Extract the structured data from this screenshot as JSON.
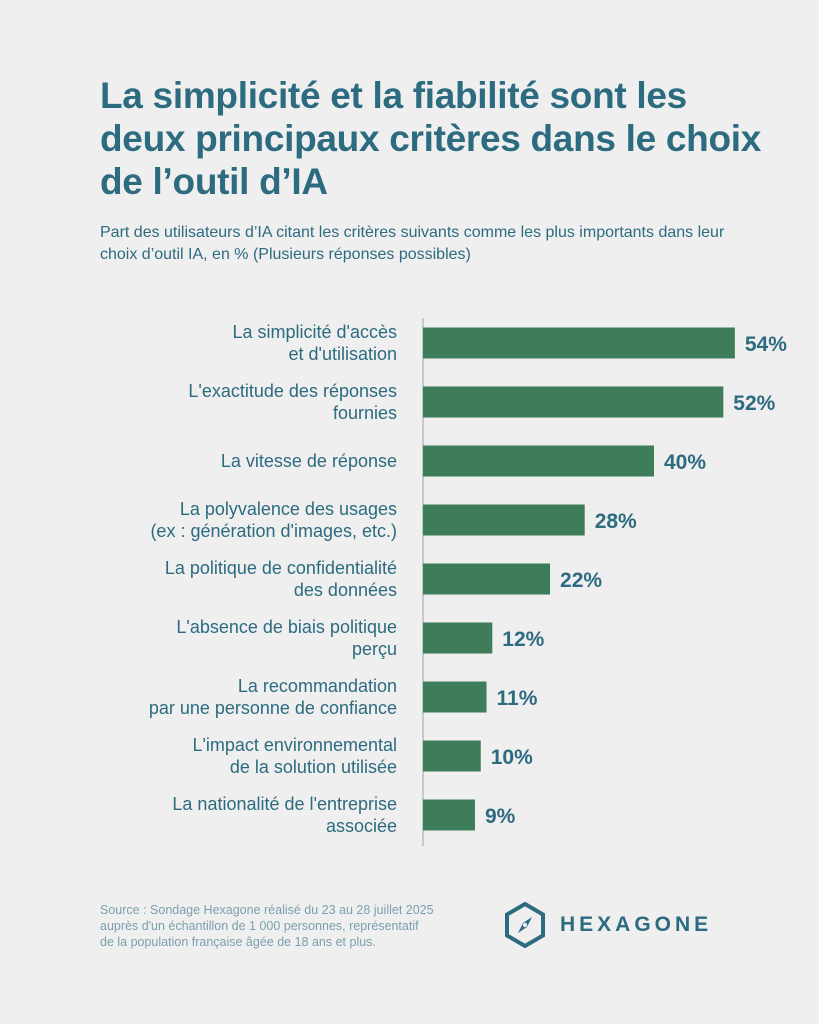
{
  "header": {
    "title": "La simplicité et la fiabilité sont les deux principaux critères dans le choix de l’outil d’IA",
    "subtitle": "Part des utilisateurs d’IA citant les critères suivants comme les plus importants dans leur choix d’outil IA, en % (Plusieurs réponses possibles)"
  },
  "chart_data": {
    "type": "bar",
    "orientation": "horizontal",
    "categories": [
      [
        "La simplicité d'accès",
        "et d'utilisation"
      ],
      [
        "L'exactitude des réponses",
        "fournies"
      ],
      [
        "La vitesse de réponse"
      ],
      [
        "La polyvalence des usages",
        "(ex : génération d'images, etc.)"
      ],
      [
        "La politique de confidentialité",
        "des données"
      ],
      [
        "L'absence de biais politique",
        "perçu"
      ],
      [
        "La recommandation",
        "par une personne de confiance"
      ],
      [
        "L'impact environnemental",
        "de la solution utilisée"
      ],
      [
        "La nationalité de l'entreprise",
        "associée"
      ]
    ],
    "values": [
      54,
      52,
      40,
      28,
      22,
      12,
      11,
      10,
      9
    ],
    "value_labels": [
      "54%",
      "52%",
      "40%",
      "28%",
      "22%",
      "12%",
      "11%",
      "10%",
      "9%"
    ],
    "xlim": [
      0,
      100
    ],
    "grid": false,
    "legend": "none",
    "bar_color": "#3e7d5a",
    "text_color": "#2c6b80"
  },
  "footer": {
    "source_lines": [
      "Source : Sondage Hexagone réalisé du 23 au 28 juillet 2025",
      "auprès d'un échantillon de 1 000 personnes, représentatif",
      "de la population française âgée de 18 ans et plus."
    ],
    "logo_icon": "hexagon-compass-icon",
    "logo_text": "HEXAGONE"
  }
}
